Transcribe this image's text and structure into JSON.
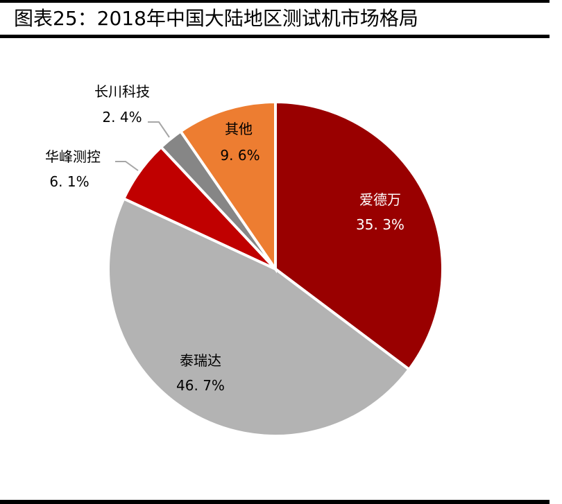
{
  "title": "图表25：2018年中国大陆地区测试机市场格局",
  "chart_data": {
    "type": "pie",
    "title": "图表25：2018年中国大陆地区测试机市场格局",
    "start_angle": "12 o'clock, clockwise",
    "legend": "none (data labels on slices)",
    "slices": [
      {
        "name": "爱德万",
        "value": 35.3,
        "label": "35.3%",
        "color": "#990000"
      },
      {
        "name": "泰瑞达",
        "value": 46.7,
        "label": "46.7%",
        "color": "#B3B3B3"
      },
      {
        "name": "华峰测控",
        "value": 6.1,
        "label": "6.1%",
        "color": "#C00000"
      },
      {
        "name": "长川科技",
        "value": 2.4,
        "label": "2.4%",
        "color": "#868686"
      },
      {
        "name": "其他",
        "value": 9.6,
        "label": "9.6%",
        "color": "#ED7D31"
      }
    ],
    "categories": [
      "爱德万",
      "泰瑞达",
      "华峰测控",
      "长川科技",
      "其他"
    ],
    "values": [
      35.3,
      46.7,
      6.1,
      2.4,
      9.6
    ],
    "unit": "%"
  },
  "labels": {
    "advantest": {
      "name": "爱德万",
      "pct": "35. 3%"
    },
    "teradyne": {
      "name": "泰瑞达",
      "pct": "46. 7%"
    },
    "huafeng": {
      "name": "华峰测控",
      "pct": "6. 1%"
    },
    "changchuan": {
      "name": "长川科技",
      "pct": "2. 4%"
    },
    "others": {
      "name": "其他",
      "pct": "9. 6%"
    }
  }
}
